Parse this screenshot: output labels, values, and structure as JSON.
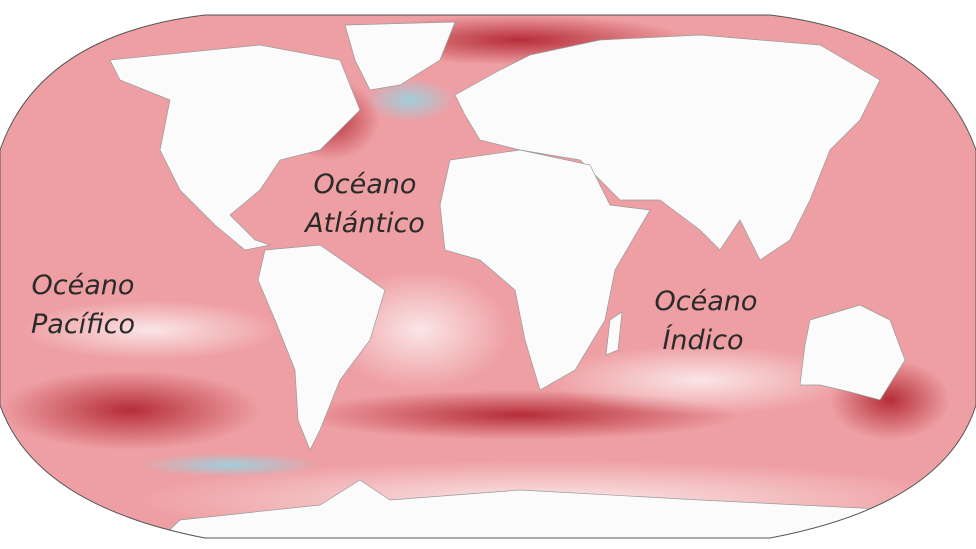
{
  "labels": [
    {
      "lines": [
        "Océano",
        "Atlántico"
      ]
    },
    {
      "lines": [
        "Océano",
        "Pacífico"
      ]
    },
    {
      "lines": [
        "Océano",
        "Índico"
      ]
    }
  ]
}
